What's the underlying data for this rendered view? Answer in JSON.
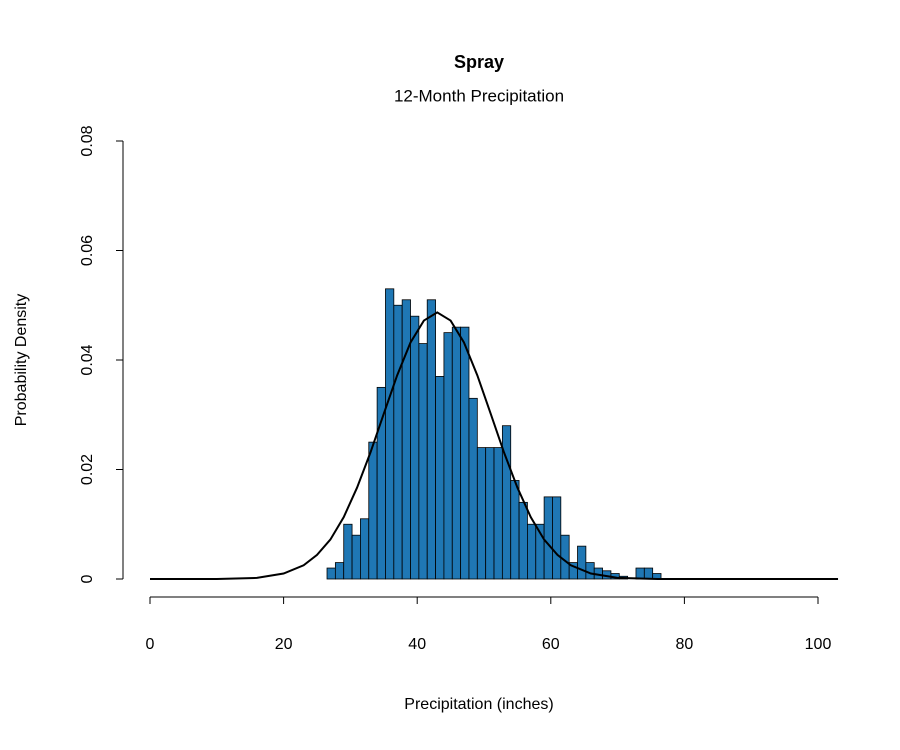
{
  "chart_data": {
    "type": "histogram",
    "title": "Spray",
    "subtitle": "12-Month Precipitation",
    "x_label": "Precipitation (inches)",
    "y_label": "Probability Density",
    "bins": [
      26.5,
      27.75,
      29,
      30.25,
      31.5,
      32.75,
      34,
      35.25,
      36.5,
      37.75,
      39,
      40.25,
      41.5,
      42.75,
      44,
      45.25,
      46.5,
      47.75,
      49,
      50.25,
      51.5,
      52.75,
      54,
      55.25,
      56.5,
      57.75,
      59,
      60.25,
      61.5,
      62.75,
      64,
      65.25,
      66.5,
      67.75,
      69,
      70.25,
      71.5,
      72.75,
      74,
      75.25,
      76.5
    ],
    "values": [
      0.002,
      0.003,
      0.01,
      0.008,
      0.011,
      0.025,
      0.035,
      0.053,
      0.05,
      0.051,
      0.048,
      0.043,
      0.051,
      0.037,
      0.045,
      0.046,
      0.046,
      0.033,
      0.024,
      0.024,
      0.024,
      0.028,
      0.018,
      0.014,
      0.01,
      0.01,
      0.015,
      0.015,
      0.008,
      0.003,
      0.006,
      0.003,
      0.002,
      0.0015,
      0.001,
      0.0005,
      0,
      0.002,
      0.002,
      0.001
    ],
    "color": "#1f77b4",
    "curve": {
      "color": "#000000",
      "x": [
        0,
        10,
        16,
        20,
        23,
        25,
        27,
        29,
        31,
        33,
        35,
        37,
        39,
        41,
        43,
        45,
        47,
        49,
        51,
        53,
        55,
        57,
        59,
        61,
        63,
        66,
        70,
        76,
        90,
        103
      ],
      "values": [
        0,
        0,
        0.0002,
        0.001,
        0.0025,
        0.0044,
        0.0072,
        0.0113,
        0.0167,
        0.0231,
        0.0302,
        0.0372,
        0.0432,
        0.0472,
        0.0487,
        0.0472,
        0.0432,
        0.0372,
        0.0302,
        0.0231,
        0.0167,
        0.0113,
        0.0072,
        0.0044,
        0.0025,
        0.001,
        0.0002,
        0,
        0,
        0
      ]
    },
    "xlim": [
      0,
      100
    ],
    "xticks": [
      0,
      20,
      40,
      60,
      80,
      100
    ],
    "ylim": [
      0,
      0.08
    ],
    "yticks": [
      0,
      0.02,
      0.04,
      0.06,
      0.08
    ]
  }
}
